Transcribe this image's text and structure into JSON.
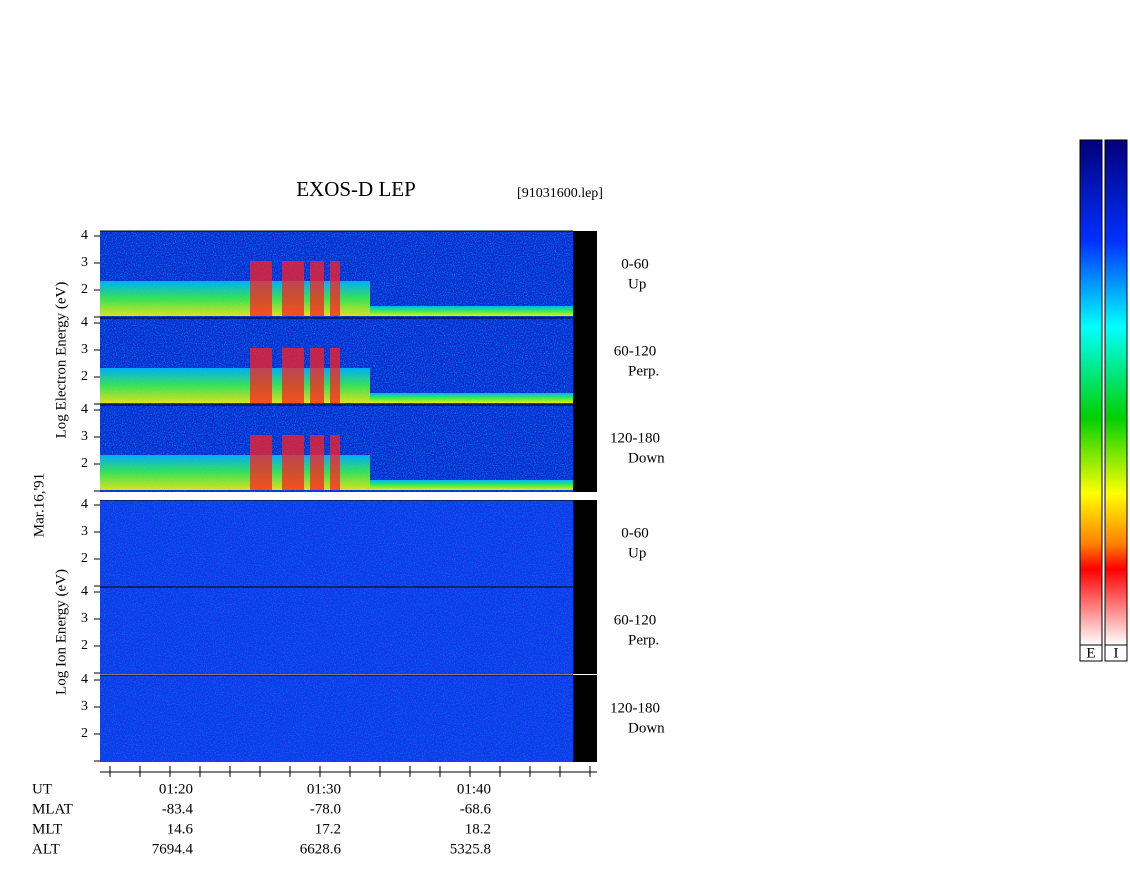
{
  "title": "EXOS-D LEP",
  "file": "[91031600.lep]",
  "date": "Mar.16,'91",
  "electron_axis_label": "Log  Electron  Energy (eV)",
  "ion_axis_label": "Log   Ion   Energy (eV)",
  "panels": [
    {
      "range": "0-60",
      "direction": "Up",
      "yticks": [
        "4",
        "3",
        "2"
      ]
    },
    {
      "range": "60-120",
      "direction": "Perp.",
      "yticks": [
        "4",
        "3",
        "2"
      ]
    },
    {
      "range": "120-180",
      "direction": "Down",
      "yticks": [
        "4",
        "3",
        "2"
      ]
    },
    {
      "range": "0-60",
      "direction": "Up",
      "yticks": [
        "4",
        "3",
        "2"
      ]
    },
    {
      "range": "60-120",
      "direction": "Perp.",
      "yticks": [
        "4",
        "3",
        "2"
      ]
    },
    {
      "range": "120-180",
      "direction": "Down",
      "yticks": [
        "4",
        "3",
        "2"
      ]
    }
  ],
  "ut_label": "UT",
  "x_ticks": [
    "01:20",
    "01:30",
    "01:40"
  ],
  "footer_rows": [
    {
      "label": "MLAT",
      "values": [
        "-83.4",
        "-78.0",
        "-68.6"
      ]
    },
    {
      "label": "MLT",
      "values": [
        "14.6",
        "17.2",
        "18.2"
      ]
    },
    {
      "label": "ALT",
      "values": [
        "7694.4",
        "6628.6",
        "5325.8"
      ]
    }
  ],
  "colorbar_labels": [
    "E",
    "I"
  ]
}
